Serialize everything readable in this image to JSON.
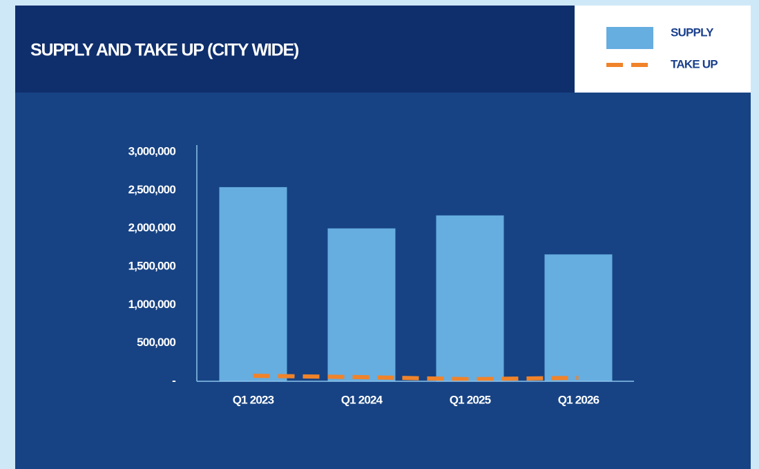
{
  "chart_data": {
    "type": "bar",
    "title": "SUPPLY AND TAKE UP (CITY WIDE)",
    "categories": [
      "Q1 2023",
      "Q1 2024",
      "Q1 2025",
      "Q1 2026"
    ],
    "series": [
      {
        "name": "SUPPLY",
        "type": "bar",
        "color": "#66ade0",
        "values": [
          2540000,
          2000000,
          2170000,
          1660000
        ]
      },
      {
        "name": "TAKE UP",
        "type": "line",
        "color": "#f0832a",
        "dashed": true,
        "values": [
          72000,
          54000,
          27000,
          45000
        ]
      }
    ],
    "ylim": [
      0,
      3000000
    ],
    "yticks": [
      {
        "value": 0,
        "label": "-"
      },
      {
        "value": 500000,
        "label": "500,000"
      },
      {
        "value": 1000000,
        "label": "1,000,000"
      },
      {
        "value": 1500000,
        "label": "1,500,000"
      },
      {
        "value": 2000000,
        "label": "2,000,000"
      },
      {
        "value": 2500000,
        "label": "2,500,000"
      },
      {
        "value": 3000000,
        "label": "3,000,000"
      }
    ],
    "grid": false,
    "legend": "top-right"
  }
}
